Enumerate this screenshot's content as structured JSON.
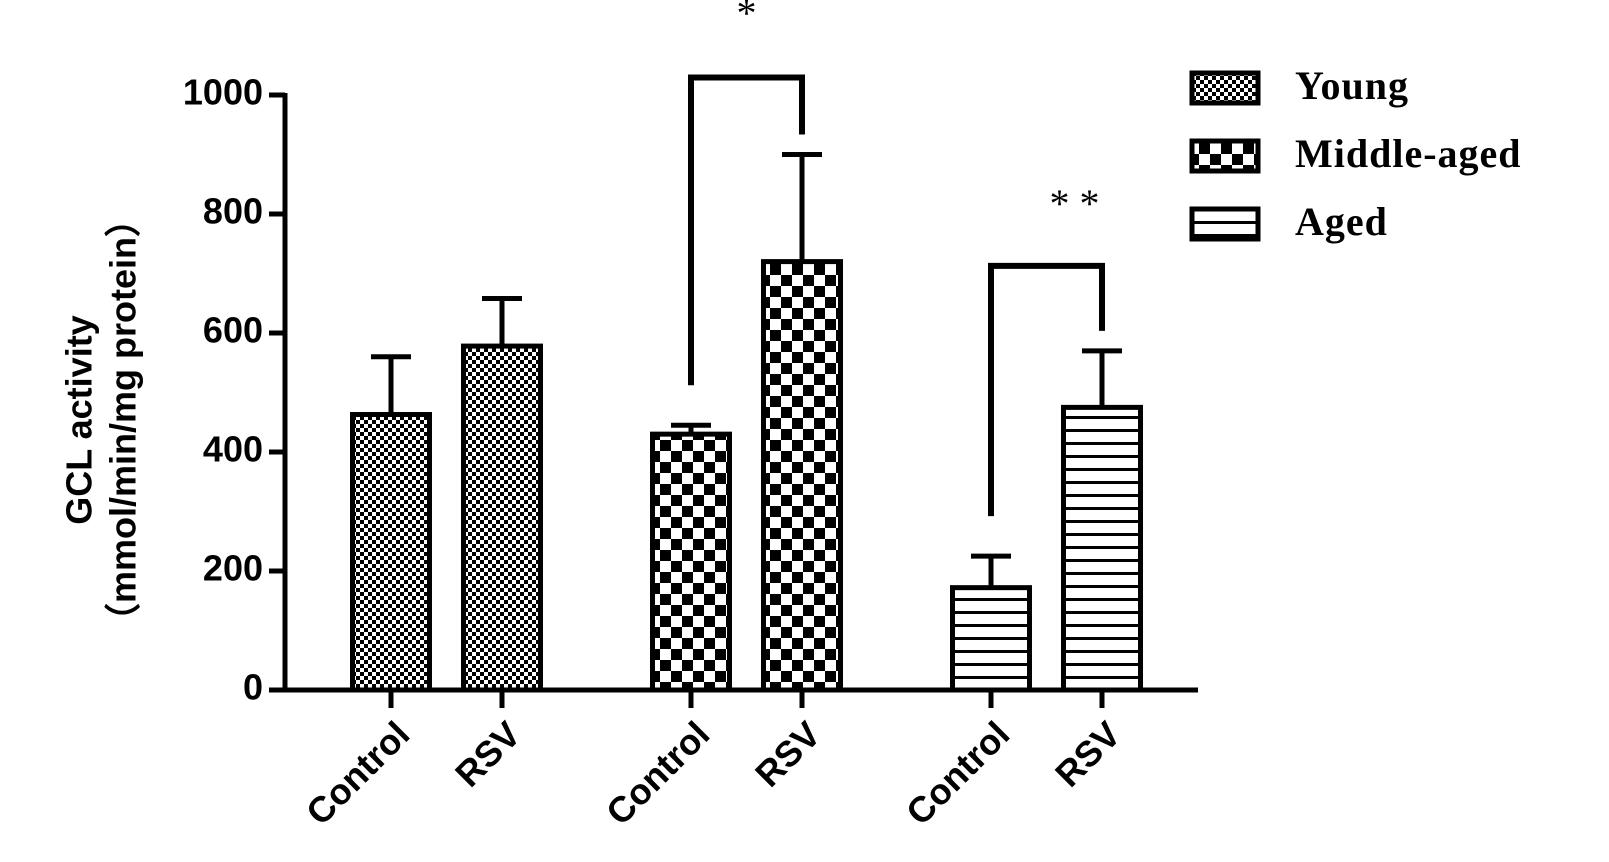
{
  "chart_data": {
    "type": "bar",
    "y_label": [
      "GCL activity",
      "（mmol/min/mg protein）"
    ],
    "categories": [
      "Control",
      "RSV",
      "Control",
      "RSV",
      "Control",
      "RSV"
    ],
    "series": [
      {
        "name": "Young",
        "color": "#000000",
        "values": [
          463,
          578,
          null,
          null,
          null,
          null
        ],
        "errors": [
          97,
          80,
          null,
          null,
          null,
          null
        ]
      },
      {
        "name": "Middle-aged",
        "color": "#000000",
        "values": [
          null,
          null,
          430,
          720,
          null,
          null
        ],
        "errors": [
          null,
          null,
          15,
          180,
          null,
          null
        ]
      },
      {
        "name": "Aged",
        "color": "#000000",
        "values": [
          null,
          null,
          null,
          null,
          172,
          475
        ],
        "errors": [
          null,
          null,
          null,
          null,
          53,
          95
        ]
      }
    ],
    "annotations": [
      "*",
      "* *"
    ],
    "ylim": [
      0,
      1000
    ],
    "yticks": [
      0,
      200,
      400,
      600,
      800,
      1000
    ]
  }
}
